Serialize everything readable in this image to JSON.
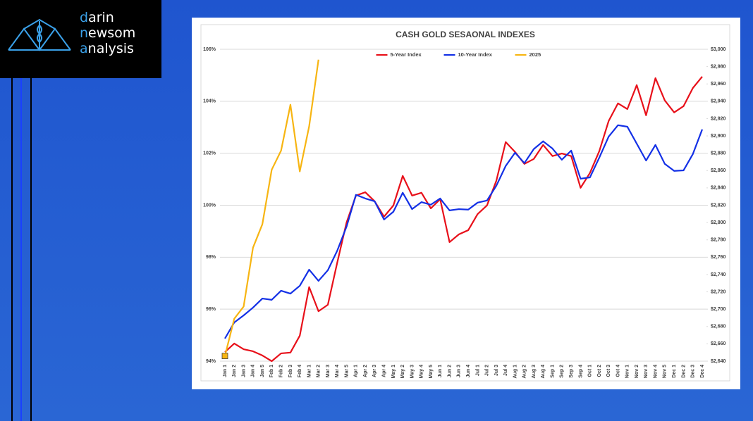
{
  "logo": {
    "lines": [
      "darin",
      "newsom",
      "analysis"
    ]
  },
  "chart_data": {
    "type": "line",
    "title": "CASH GOLD SESAONAL INDEXES",
    "legend_position": "top",
    "grid": true,
    "categories": [
      "Jan 1",
      "Jan 2",
      "Jan 3",
      "Jan 4",
      "Jan 5",
      "Feb 1",
      "Feb 2",
      "Feb 3",
      "Feb 4",
      "Mar 1",
      "Mar 2",
      "Mar 3",
      "Mar 4",
      "Mar 5",
      "Apr 1",
      "Apr 2",
      "Apr 3",
      "Apr 4",
      "May 1",
      "May 2",
      "May 3",
      "May 4",
      "May 5",
      "Jun 1",
      "Jun 2",
      "Jun 3",
      "Jun 4",
      "Jul 1",
      "Jul 2",
      "Jul 3",
      "Jul 4",
      "Aug 1",
      "Aug 2",
      "Aug 3",
      "Aug 4",
      "Sep 1",
      "Sep 2",
      "Sep 3",
      "Sep 4",
      "Oct 1",
      "Oct 2",
      "Oct 3",
      "Oct 4",
      "Nov 1",
      "Nov 2",
      "Nov 3",
      "Nov 4",
      "Nov 5",
      "Dec 1",
      "Dec 2",
      "Dec 3",
      "Dec 4"
    ],
    "ylim": [
      94,
      106
    ],
    "yticks": [
      {
        "value": 94,
        "label": "94%"
      },
      {
        "value": 96,
        "label": "96%"
      },
      {
        "value": 98,
        "label": "98%"
      },
      {
        "value": 100,
        "label": "100%"
      },
      {
        "value": 102,
        "label": "102%"
      },
      {
        "value": 104,
        "label": "104%"
      },
      {
        "value": 106,
        "label": "106%"
      }
    ],
    "y2lim": [
      2640,
      3000
    ],
    "y2ticks": [
      {
        "value": 2640,
        "label": "$2,640"
      },
      {
        "value": 2660,
        "label": "$2,660"
      },
      {
        "value": 2680,
        "label": "$2,680"
      },
      {
        "value": 2700,
        "label": "$2,700"
      },
      {
        "value": 2720,
        "label": "$2,720"
      },
      {
        "value": 2740,
        "label": "$2,740"
      },
      {
        "value": 2760,
        "label": "$2,760"
      },
      {
        "value": 2780,
        "label": "$2,780"
      },
      {
        "value": 2800,
        "label": "$2,800"
      },
      {
        "value": 2820,
        "label": "$2,820"
      },
      {
        "value": 2840,
        "label": "$2,840"
      },
      {
        "value": 2860,
        "label": "$2,860"
      },
      {
        "value": 2880,
        "label": "$2,880"
      },
      {
        "value": 2900,
        "label": "$2,900"
      },
      {
        "value": 2920,
        "label": "$2,920"
      },
      {
        "value": 2940,
        "label": "$2,940"
      },
      {
        "value": 2960,
        "label": "$2,960"
      },
      {
        "value": 2980,
        "label": "$2,980"
      },
      {
        "value": 3000,
        "label": "$3,000"
      }
    ],
    "series": [
      {
        "name": "5-Year Index",
        "color": "#e8101a",
        "values": [
          94.35,
          94.68,
          94.46,
          94.38,
          94.22,
          94.0,
          94.3,
          94.33,
          94.98,
          96.85,
          95.92,
          96.17,
          97.79,
          99.34,
          100.37,
          100.5,
          100.15,
          99.56,
          99.99,
          101.13,
          100.37,
          100.48,
          99.88,
          100.23,
          98.58,
          98.88,
          99.04,
          99.66,
          99.99,
          100.94,
          102.43,
          102.05,
          101.59,
          101.78,
          102.32,
          101.89,
          101.99,
          101.89,
          100.67,
          101.24,
          102.08,
          103.24,
          103.92,
          103.7,
          104.62,
          103.46,
          104.89,
          104.03,
          103.57,
          103.81,
          104.51,
          104.95
        ]
      },
      {
        "name": "10-Year Index",
        "color": "#1330e6",
        "values": [
          94.87,
          95.49,
          95.76,
          96.06,
          96.41,
          96.36,
          96.71,
          96.6,
          96.9,
          97.52,
          97.09,
          97.5,
          98.25,
          99.18,
          100.4,
          100.26,
          100.15,
          99.45,
          99.75,
          100.48,
          99.85,
          100.12,
          100.02,
          100.26,
          99.8,
          99.85,
          99.83,
          100.1,
          100.18,
          100.75,
          101.51,
          102.02,
          101.62,
          102.16,
          102.46,
          102.18,
          101.75,
          102.1,
          101.02,
          101.07,
          101.83,
          102.64,
          103.08,
          103.02,
          102.37,
          101.72,
          102.32,
          101.59,
          101.32,
          101.34,
          101.97,
          102.92
        ]
      },
      {
        "name": "2025",
        "color": "#f7b512",
        "axis": "y2",
        "values": [
          2646,
          2689,
          2703,
          2771,
          2798,
          2861,
          2883,
          2936,
          2859,
          2911,
          2988,
          null,
          null,
          null,
          null,
          null,
          null,
          null,
          null,
          null,
          null,
          null,
          null,
          null,
          null,
          null,
          null,
          null,
          null,
          null,
          null,
          null,
          null,
          null,
          null,
          null,
          null,
          null,
          null,
          null,
          null,
          null,
          null,
          null,
          null,
          null,
          null,
          null,
          null,
          null,
          null,
          null
        ]
      }
    ]
  }
}
